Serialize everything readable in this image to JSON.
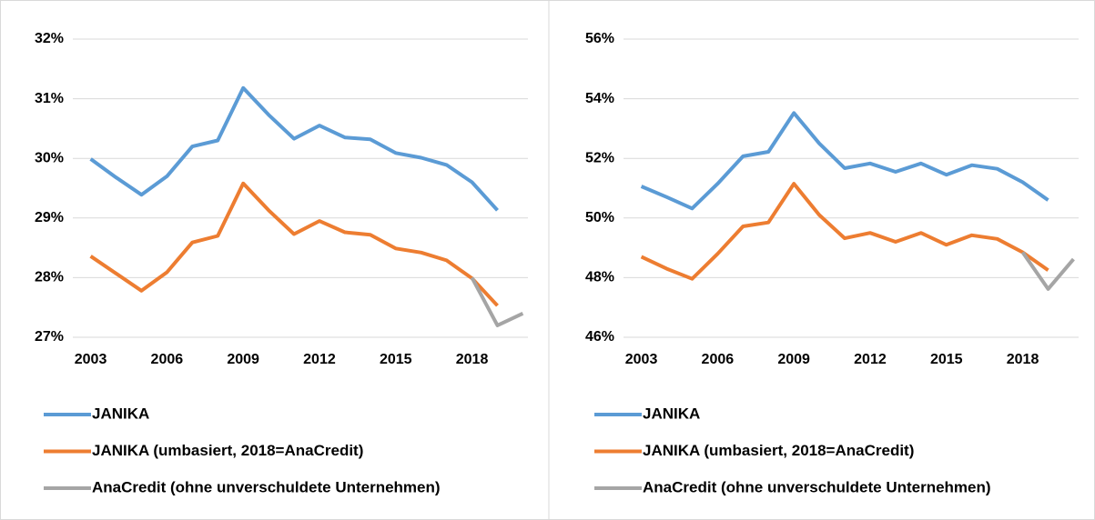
{
  "chart_data": [
    {
      "type": "line",
      "x": [
        2003,
        2004,
        2005,
        2006,
        2007,
        2008,
        2009,
        2010,
        2011,
        2012,
        2013,
        2014,
        2015,
        2016,
        2017,
        2018,
        2019,
        2020
      ],
      "xlim": [
        2002.3,
        2020.2
      ],
      "xticks": [
        2003,
        2006,
        2009,
        2012,
        2015,
        2018
      ],
      "ylim": [
        27,
        32
      ],
      "yticks": [
        {
          "value": 27,
          "label": "27%"
        },
        {
          "value": 28,
          "label": "28%"
        },
        {
          "value": 29,
          "label": "29%"
        },
        {
          "value": 30,
          "label": "30%"
        },
        {
          "value": 31,
          "label": "31%"
        },
        {
          "value": 32,
          "label": "32%"
        }
      ],
      "grid": true,
      "series": [
        {
          "name": "JANIKA",
          "color": "#5b9bd5",
          "values": [
            29.99,
            29.68,
            29.39,
            29.7,
            30.2,
            30.3,
            31.18,
            30.73,
            30.33,
            30.55,
            30.35,
            30.32,
            30.09,
            30.01,
            29.89,
            29.6,
            29.13,
            null
          ]
        },
        {
          "name": "JANIKA (umbasiert, 2018=AnaCredit)",
          "color": "#ed7d31",
          "values": [
            28.36,
            28.07,
            27.78,
            28.09,
            28.59,
            28.7,
            29.58,
            29.13,
            28.73,
            28.95,
            28.76,
            28.72,
            28.49,
            28.42,
            28.29,
            27.99,
            27.53,
            null
          ]
        },
        {
          "name": "AnaCredit (ohne unverschuldete Unternehmen)",
          "color": "#a5a5a5",
          "values": [
            null,
            null,
            null,
            null,
            null,
            null,
            null,
            null,
            null,
            null,
            null,
            null,
            null,
            null,
            null,
            28.0,
            27.2,
            27.4
          ]
        }
      ]
    },
    {
      "type": "line",
      "x": [
        2003,
        2004,
        2005,
        2006,
        2007,
        2008,
        2009,
        2010,
        2011,
        2012,
        2013,
        2014,
        2015,
        2016,
        2017,
        2018,
        2019,
        2020
      ],
      "xlim": [
        2002.3,
        2020.2
      ],
      "xticks": [
        2003,
        2006,
        2009,
        2012,
        2015,
        2018
      ],
      "ylim": [
        46,
        56
      ],
      "yticks": [
        {
          "value": 46,
          "label": "46%"
        },
        {
          "value": 48,
          "label": "48%"
        },
        {
          "value": 50,
          "label": "50%"
        },
        {
          "value": 52,
          "label": "52%"
        },
        {
          "value": 54,
          "label": "54%"
        },
        {
          "value": 56,
          "label": "56%"
        }
      ],
      "grid": true,
      "series": [
        {
          "name": "JANIKA",
          "color": "#5b9bd5",
          "values": [
            51.06,
            50.7,
            50.32,
            51.15,
            52.07,
            52.22,
            53.52,
            52.5,
            51.67,
            51.83,
            51.55,
            51.83,
            51.45,
            51.77,
            51.65,
            51.2,
            50.6,
            null
          ]
        },
        {
          "name": "JANIKA (umbasiert, 2018=AnaCredit)",
          "color": "#ed7d31",
          "values": [
            48.7,
            48.3,
            47.96,
            48.8,
            49.72,
            49.85,
            51.15,
            50.1,
            49.32,
            49.5,
            49.2,
            49.5,
            49.1,
            49.42,
            49.3,
            48.85,
            48.25,
            null
          ]
        },
        {
          "name": "AnaCredit (ohne unverschuldete Unternehmen)",
          "color": "#a5a5a5",
          "values": [
            null,
            null,
            null,
            null,
            null,
            null,
            null,
            null,
            null,
            null,
            null,
            null,
            null,
            null,
            null,
            48.85,
            47.62,
            48.62
          ]
        }
      ]
    }
  ]
}
